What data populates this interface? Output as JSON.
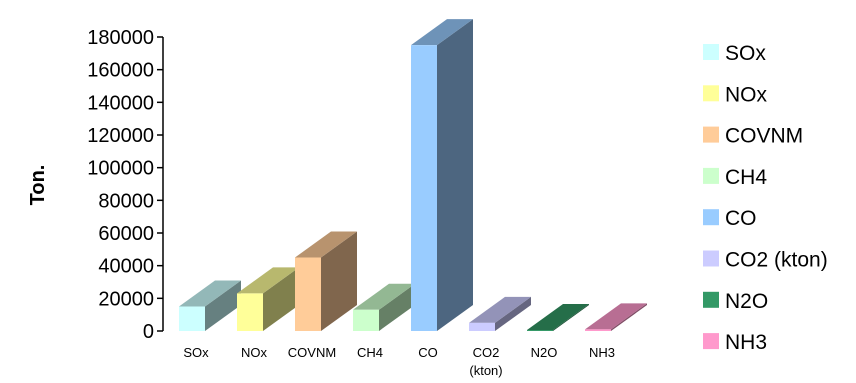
{
  "chart_data": {
    "type": "bar",
    "title": "",
    "xlabel": "",
    "ylabel": "Ton.",
    "ylim": [
      0,
      180000
    ],
    "yticks": [
      "0",
      "20000",
      "40000",
      "60000",
      "80000",
      "100000",
      "120000",
      "140000",
      "160000",
      "180000"
    ],
    "categories": [
      {
        "lines": [
          "SOx"
        ]
      },
      {
        "lines": [
          "NOx"
        ]
      },
      {
        "lines": [
          "COVNM"
        ]
      },
      {
        "lines": [
          "CH4"
        ]
      },
      {
        "lines": [
          "CO"
        ]
      },
      {
        "lines": [
          "CO2",
          "(kton)"
        ]
      },
      {
        "lines": [
          "N2O"
        ]
      },
      {
        "lines": [
          "NH3"
        ]
      }
    ],
    "values": [
      15000,
      23000,
      45000,
      13000,
      175000,
      5000,
      600,
      1000
    ],
    "colors": [
      "#ccffff",
      "#ffff99",
      "#ffcc99",
      "#ccffcc",
      "#99ccff",
      "#ccccff",
      "#339966",
      "#ff99cc"
    ],
    "legend": [
      "SOx",
      "NOx",
      "COVNM",
      "CH4",
      "CO",
      "CO2 (kton)",
      "N2O",
      "NH3"
    ],
    "legend_position": "right",
    "grid": false
  }
}
